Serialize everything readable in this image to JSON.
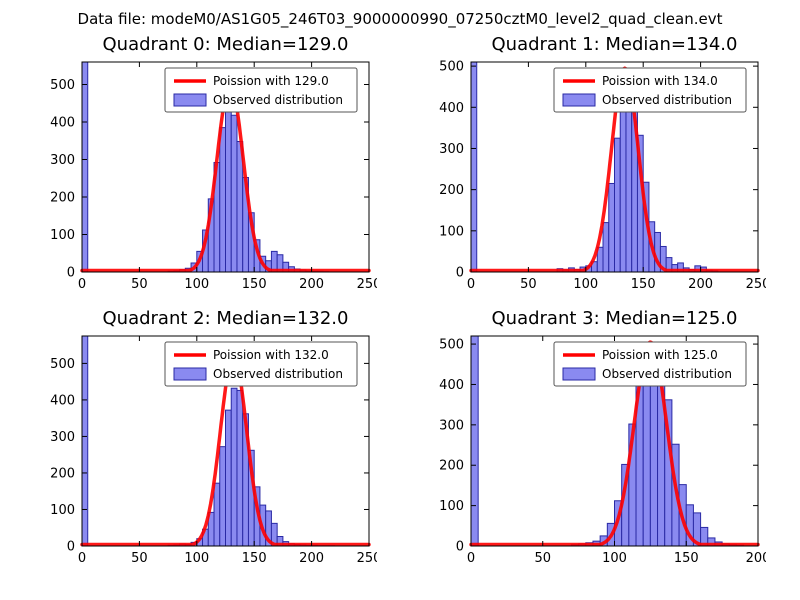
{
  "figure_title": "Data file: modeM0/AS1G05_246T03_9000000990_07250cztM0_level2_quad_clean.evt",
  "colors": {
    "bar_fill": "#8a8af0",
    "bar_edge": "#2a2aa5",
    "curve_red": "#ff0000",
    "axis": "#000000",
    "legend_border": "#555555",
    "legend_bg": "#ffffff"
  },
  "chart_data": [
    {
      "type": "histogram+line",
      "title": "Quadrant 0: Median=129.0",
      "median": 129.0,
      "legend": [
        {
          "kind": "line",
          "label": "Poission with 129.0"
        },
        {
          "kind": "patch",
          "label": "Observed distribution"
        }
      ],
      "xlim": [
        0,
        250
      ],
      "xticks": [
        0,
        50,
        100,
        150,
        200,
        250
      ],
      "ylim": [
        0,
        560
      ],
      "yticks": [
        0,
        100,
        200,
        300,
        400,
        500
      ],
      "bin_width": 5,
      "zero_spike": 560,
      "hist_start": 75,
      "hist_heights": [
        2,
        3,
        6,
        10,
        24,
        55,
        112,
        195,
        292,
        385,
        432,
        418,
        348,
        252,
        158,
        86,
        42,
        30,
        55,
        46,
        26,
        14,
        8,
        5,
        3,
        2,
        2,
        1
      ],
      "curve": {
        "shape": "gaussian",
        "mu": 129,
        "sigma": 11.4,
        "peak": 500
      }
    },
    {
      "type": "histogram+line",
      "title": "Quadrant 1: Median=134.0",
      "median": 134.0,
      "legend": [
        {
          "kind": "line",
          "label": "Poission with 134.0"
        },
        {
          "kind": "patch",
          "label": "Observed distribution"
        }
      ],
      "xlim": [
        0,
        250
      ],
      "xticks": [
        0,
        50,
        100,
        150,
        200,
        250
      ],
      "ylim": [
        0,
        510
      ],
      "yticks": [
        0,
        100,
        200,
        300,
        400,
        500
      ],
      "bin_width": 5,
      "zero_spike": 510,
      "hist_start": 75,
      "hist_heights": [
        8,
        5,
        10,
        6,
        12,
        15,
        25,
        60,
        120,
        215,
        325,
        432,
        468,
        422,
        332,
        218,
        122,
        96,
        62,
        35,
        18,
        22,
        10,
        6,
        15,
        12,
        4,
        3
      ],
      "curve": {
        "shape": "gaussian",
        "mu": 134,
        "sigma": 11.6,
        "peak": 495
      }
    },
    {
      "type": "histogram+line",
      "title": "Quadrant 2: Median=132.0",
      "median": 132.0,
      "legend": [
        {
          "kind": "line",
          "label": "Poission with 132.0"
        },
        {
          "kind": "patch",
          "label": "Observed distribution"
        }
      ],
      "xlim": [
        0,
        250
      ],
      "xticks": [
        0,
        50,
        100,
        150,
        200,
        250
      ],
      "ylim": [
        0,
        575
      ],
      "yticks": [
        0,
        100,
        200,
        300,
        400,
        500
      ],
      "bin_width": 5,
      "zero_spike": 575,
      "hist_start": 75,
      "hist_heights": [
        2,
        3,
        5,
        4,
        10,
        20,
        46,
        92,
        172,
        272,
        372,
        432,
        426,
        362,
        262,
        162,
        112,
        96,
        62,
        26,
        12,
        6,
        4,
        3,
        2,
        2,
        1,
        1,
        1
      ],
      "curve": {
        "shape": "gaussian",
        "mu": 132,
        "sigma": 11.5,
        "peak": 520
      }
    },
    {
      "type": "histogram+line",
      "title": "Quadrant 3: Median=125.0",
      "median": 125.0,
      "legend": [
        {
          "kind": "line",
          "label": "Poission with 125.0"
        },
        {
          "kind": "patch",
          "label": "Observed distribution"
        }
      ],
      "xlim": [
        0,
        200
      ],
      "xticks": [
        0,
        50,
        100,
        150,
        200
      ],
      "ylim": [
        0,
        520
      ],
      "yticks": [
        0,
        100,
        200,
        300,
        400,
        500
      ],
      "bin_width": 5,
      "zero_spike": 520,
      "hist_start": 70,
      "hist_heights": [
        3,
        5,
        8,
        12,
        25,
        56,
        112,
        202,
        302,
        402,
        468,
        492,
        442,
        362,
        252,
        152,
        102,
        82,
        46,
        20,
        10,
        5,
        3,
        2
      ],
      "curve": {
        "shape": "gaussian",
        "mu": 125,
        "sigma": 11.2,
        "peak": 505
      }
    }
  ]
}
